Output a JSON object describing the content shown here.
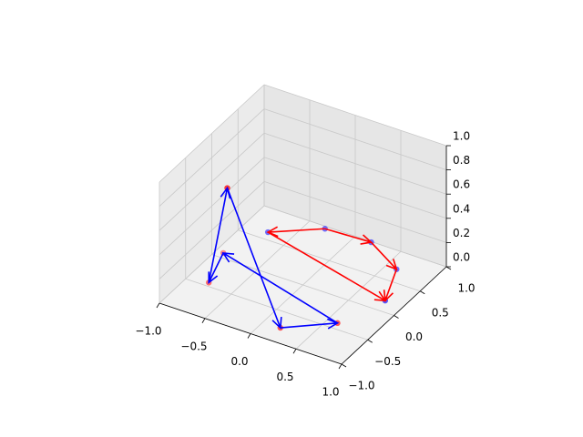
{
  "chart_data": {
    "type": "quiver3d",
    "xlim": [
      -1,
      1
    ],
    "ylim": [
      -1,
      1
    ],
    "zlim": [
      0,
      1
    ],
    "xticks": [
      {
        "value": -1,
        "label": "−1.0"
      },
      {
        "value": -0.5,
        "label": "−0.5"
      },
      {
        "value": 0,
        "label": "0.0"
      },
      {
        "value": 0.5,
        "label": "0.5"
      },
      {
        "value": 1,
        "label": "1.0"
      }
    ],
    "yticks": [
      {
        "value": -1,
        "label": "−1.0"
      },
      {
        "value": -0.5,
        "label": "−0.5"
      },
      {
        "value": 0,
        "label": "0.0"
      },
      {
        "value": 0.5,
        "label": "0.5"
      },
      {
        "value": 1,
        "label": "1.0"
      }
    ],
    "zticks": [
      {
        "value": 0,
        "label": "0.0"
      },
      {
        "value": 0.2,
        "label": "0.2"
      },
      {
        "value": 0.4,
        "label": "0.4"
      },
      {
        "value": 0.6,
        "label": "0.6"
      },
      {
        "value": 0.8,
        "label": "0.8"
      },
      {
        "value": 1,
        "label": "1.0"
      }
    ],
    "grid": true,
    "points": {
      "x": [
        -0.74,
        -0.31,
        0.18,
        0.62,
        0.8,
        0.61,
        0.19,
        -0.78,
        -0.92,
        -0.6
      ],
      "y": [
        0.62,
        0.96,
        0.99,
        0.71,
        0.18,
        -0.4,
        -0.76,
        -0.44,
        0.08,
        -0.4
      ],
      "z": [
        0,
        0,
        0,
        0,
        0,
        0,
        0,
        0,
        0,
        0.81
      ],
      "colors": [
        "#4040ff",
        "#4040ff",
        "#4040ff",
        "#4040ff",
        "#2020ff",
        "#ff2020",
        "#ff2020",
        "#ff4040",
        "#ff6060",
        "#ff0000"
      ]
    },
    "series": [
      {
        "color": "#ff0000",
        "x": [
          -0.31,
          -0.31,
          0.18,
          0.62,
          -0.74
        ],
        "y": [
          0.96,
          0.96,
          0.99,
          0.71,
          0.62
        ],
        "z": [
          0,
          0,
          0,
          0,
          0
        ],
        "u": [
          -0.43,
          0.49,
          0.44,
          0.18,
          1.54
        ],
        "v": [
          -0.34,
          0.03,
          -0.28,
          -0.53,
          -0.44
        ],
        "w": [
          0,
          0,
          0,
          0,
          0
        ]
      },
      {
        "color": "#0000ff",
        "x": [
          -0.78,
          -0.6,
          0.19,
          0.61,
          -0.92
        ],
        "y": [
          -0.44,
          -0.4,
          -0.76,
          -0.4,
          0.08
        ],
        "z": [
          0,
          0.81,
          0,
          0,
          0
        ],
        "u": [
          0.18,
          0.79,
          0.42,
          -1.53,
          0.14
        ],
        "v": [
          0.04,
          -0.36,
          0.36,
          0.48,
          -0.52
        ],
        "w": [
          0.81,
          -0.81,
          0,
          0,
          0
        ]
      }
    ]
  }
}
